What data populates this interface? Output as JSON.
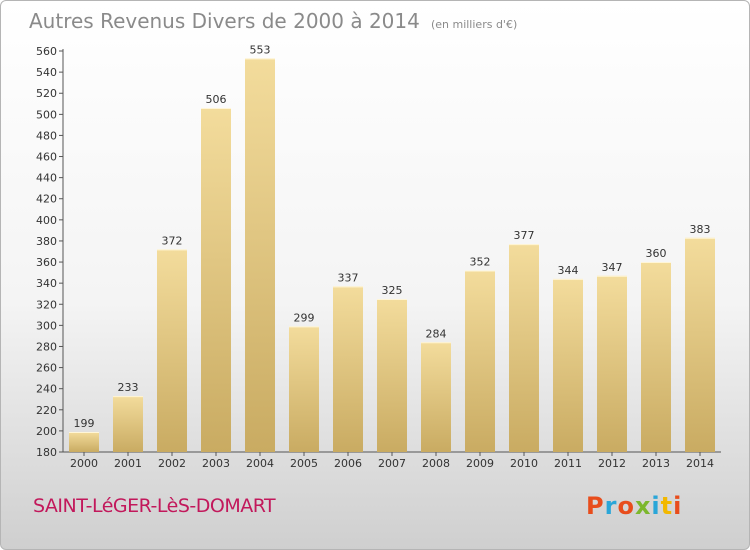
{
  "chart_data": {
    "type": "bar",
    "title": "Autres Revenus Divers de 2000 à 2014",
    "subtitle": "(en milliers d'€)",
    "categories": [
      "2000",
      "2001",
      "2002",
      "2003",
      "2004",
      "2005",
      "2006",
      "2007",
      "2008",
      "2009",
      "2010",
      "2011",
      "2012",
      "2013",
      "2014"
    ],
    "values": [
      199,
      233,
      372,
      506,
      553,
      299,
      337,
      325,
      284,
      352,
      377,
      344,
      347,
      360,
      383
    ],
    "ylim": [
      180,
      560
    ],
    "yticks": [
      180,
      200,
      220,
      240,
      260,
      280,
      300,
      320,
      340,
      360,
      380,
      400,
      420,
      440,
      460,
      480,
      500,
      520,
      540,
      560
    ],
    "grid": false,
    "colors": {
      "bar_top": "#f3dc9c",
      "bar_bottom": "#c9ab62"
    }
  },
  "footer": {
    "place": "SAINT-LéGER-LèS-DOMART",
    "logo": "Proxiti",
    "logo_colors": [
      "#e84d1c",
      "#2aa6d8",
      "#e84d1c",
      "#7cb72d",
      "#2aa6d8",
      "#f2b800",
      "#e84d1c"
    ]
  }
}
